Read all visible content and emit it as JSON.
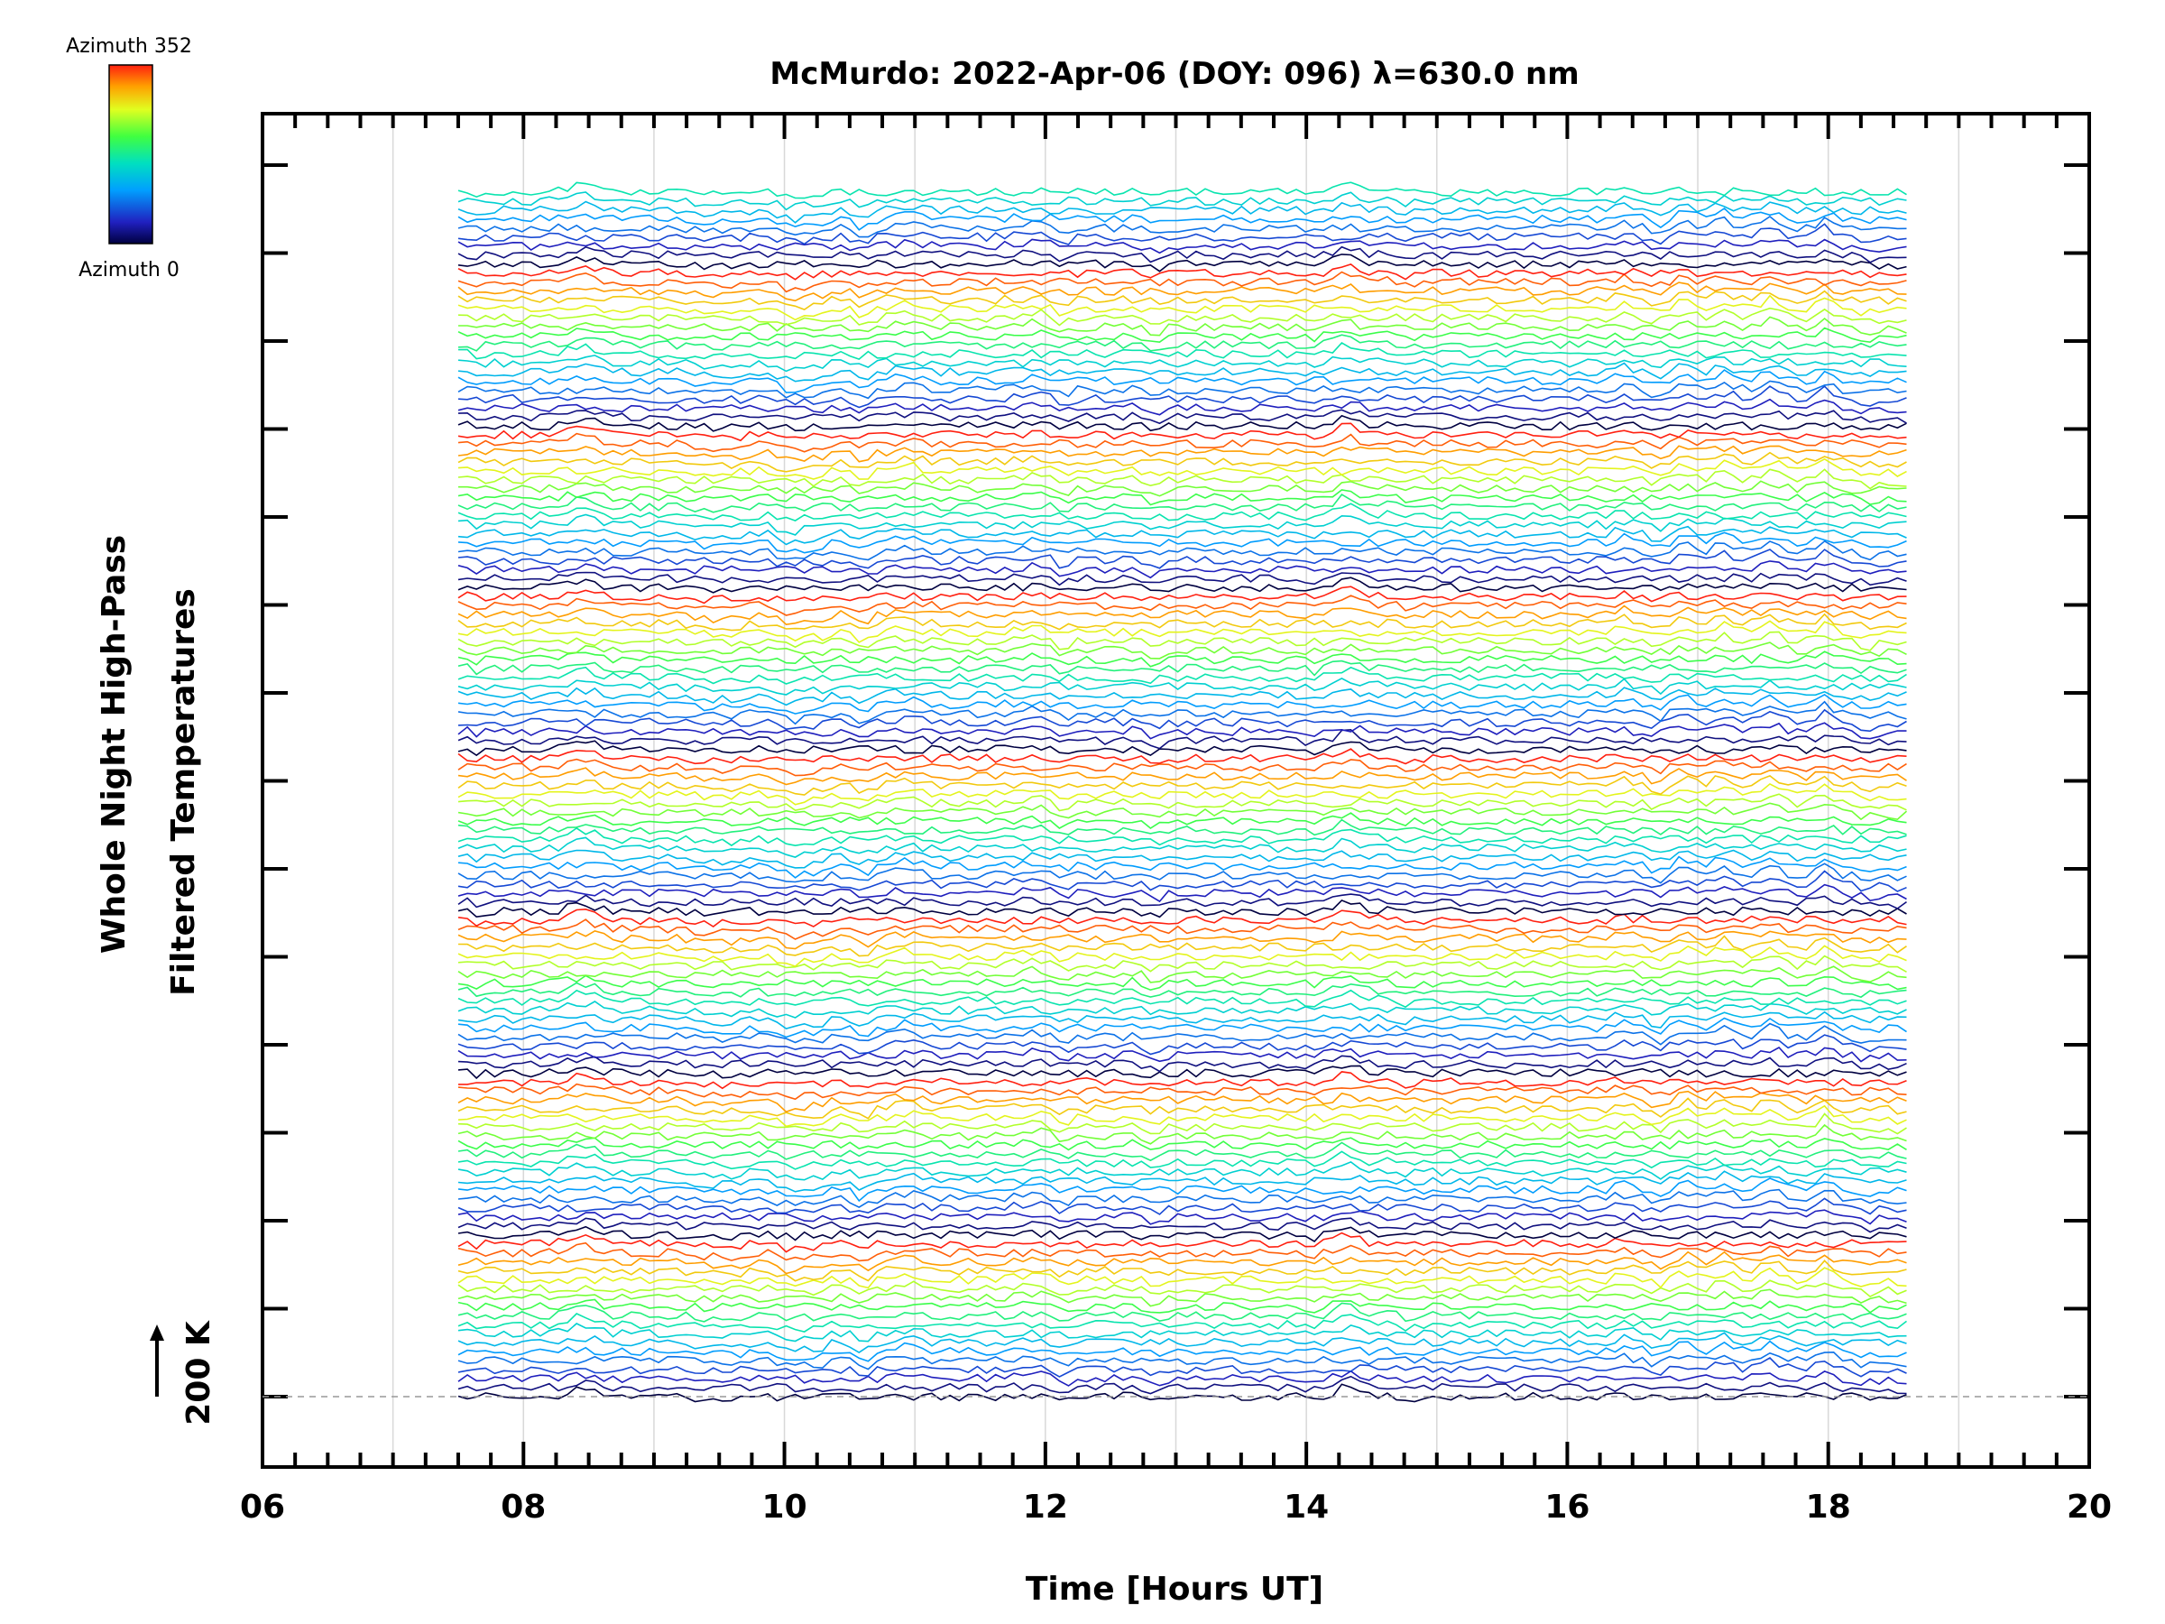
{
  "chart_data": {
    "type": "line",
    "title": "McMurdo: 2022-Apr-06 (DOY: 096) λ=630.0 nm",
    "xlabel": "Time [Hours UT]",
    "ylabel_line1": "Whole Night High-Pass",
    "ylabel_line2": "Filtered Temperatures",
    "scale_label": "200 K",
    "xlim": [
      6,
      20
    ],
    "x_ticks": [
      "06",
      "08",
      "10",
      "12",
      "14",
      "16",
      "18",
      "20"
    ],
    "data_time_range": [
      7.5,
      18.6
    ],
    "num_traces": 135,
    "traces_per_group": 18,
    "colorbar": {
      "top_label": "Azimuth 352",
      "bottom_label": "Azimuth 0",
      "min": 0,
      "max": 352,
      "colormap": "rainbow"
    },
    "grid": true
  }
}
